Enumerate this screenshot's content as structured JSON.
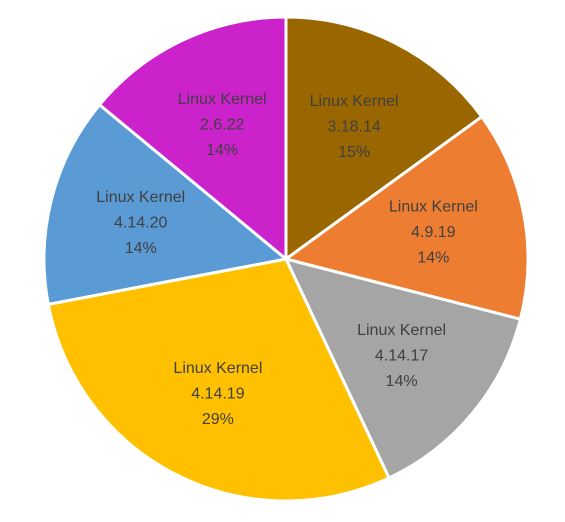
{
  "chart_data": {
    "type": "pie",
    "title": "",
    "categories": [
      "Linux Kernel 3.18.14",
      "Linux Kernel 4.9.19",
      "Linux Kernel 4.14.17",
      "Linux Kernel 4.14.19",
      "Linux Kernel 4.14.20",
      "Linux Kernel 2.6.22"
    ],
    "values": [
      15,
      14,
      14,
      29,
      14,
      14
    ],
    "slices": [
      {
        "name": "Linux Kernel",
        "version": "3.18.14",
        "percent_label": "15%",
        "value": 15,
        "color": "#996600"
      },
      {
        "name": "Linux Kernel",
        "version": "4.9.19",
        "percent_label": "14%",
        "value": 14,
        "color": "#ED7D31"
      },
      {
        "name": "Linux Kernel",
        "version": "4.14.17",
        "percent_label": "14%",
        "value": 14,
        "color": "#A5A5A5"
      },
      {
        "name": "Linux Kernel",
        "version": "4.14.19",
        "percent_label": "29%",
        "value": 29,
        "color": "#FFC000"
      },
      {
        "name": "Linux Kernel",
        "version": "4.14.20",
        "percent_label": "14%",
        "value": 14,
        "color": "#5B9BD5"
      },
      {
        "name": "Linux Kernel",
        "version": "2.6.22",
        "percent_label": "14%",
        "value": 14,
        "color": "#CC22CC"
      }
    ],
    "start_angle_deg": 0,
    "direction": "clockwise",
    "label_color": "#404040",
    "slice_border_color": "#ffffff",
    "legend": "none"
  }
}
